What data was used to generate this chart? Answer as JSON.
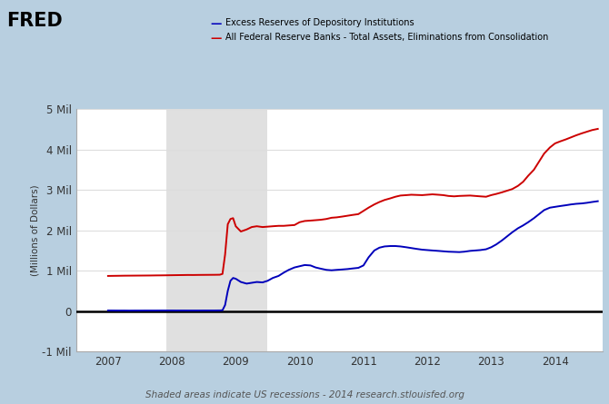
{
  "title": "",
  "ylabel": "(Millions of Dollars)",
  "xlabel": "",
  "footer": "Shaded areas indicate US recessions - 2014 research.stlouisfed.org",
  "legend_blue": "Excess Reserves of Depository Institutions",
  "legend_red": "All Federal Reserve Banks - Total Assets, Eliminations from Consolidation",
  "ylim": [
    -1000000,
    5000000
  ],
  "yticks": [
    -1000000,
    0,
    1000000,
    2000000,
    3000000,
    4000000,
    5000000
  ],
  "ytick_labels": [
    "-1 Mil",
    "0",
    "1 Mil",
    "2 Mil",
    "3 Mil",
    "4 Mil",
    "5 Mil"
  ],
  "recession_bands": [
    [
      2007.917,
      2009.5
    ]
  ],
  "bg_color": "#b8cfe0",
  "plot_bg_color": "#ffffff",
  "grid_color": "#dddddd",
  "blue_color": "#0000bb",
  "red_color": "#cc0000",
  "xticks": [
    2007,
    2008,
    2009,
    2010,
    2011,
    2012,
    2013,
    2014
  ],
  "xlim": [
    2006.5,
    2014.75
  ],
  "red_data": [
    [
      2007.0,
      870000
    ],
    [
      2007.08,
      872000
    ],
    [
      2007.17,
      874000
    ],
    [
      2007.25,
      876000
    ],
    [
      2007.33,
      877000
    ],
    [
      2007.42,
      878000
    ],
    [
      2007.5,
      879000
    ],
    [
      2007.58,
      880000
    ],
    [
      2007.67,
      881000
    ],
    [
      2007.75,
      883000
    ],
    [
      2007.83,
      884000
    ],
    [
      2007.92,
      886000
    ],
    [
      2008.0,
      888000
    ],
    [
      2008.08,
      890000
    ],
    [
      2008.17,
      892000
    ],
    [
      2008.25,
      894000
    ],
    [
      2008.33,
      893000
    ],
    [
      2008.42,
      895000
    ],
    [
      2008.5,
      896000
    ],
    [
      2008.58,
      897000
    ],
    [
      2008.67,
      898000
    ],
    [
      2008.75,
      900000
    ],
    [
      2008.792,
      920000
    ],
    [
      2008.833,
      1400000
    ],
    [
      2008.875,
      2150000
    ],
    [
      2008.917,
      2280000
    ],
    [
      2008.958,
      2300000
    ],
    [
      2009.0,
      2100000
    ],
    [
      2009.08,
      1970000
    ],
    [
      2009.17,
      2020000
    ],
    [
      2009.25,
      2080000
    ],
    [
      2009.33,
      2100000
    ],
    [
      2009.42,
      2080000
    ],
    [
      2009.5,
      2090000
    ],
    [
      2009.58,
      2100000
    ],
    [
      2009.67,
      2110000
    ],
    [
      2009.75,
      2110000
    ],
    [
      2009.83,
      2120000
    ],
    [
      2009.92,
      2130000
    ],
    [
      2010.0,
      2200000
    ],
    [
      2010.08,
      2230000
    ],
    [
      2010.17,
      2240000
    ],
    [
      2010.25,
      2250000
    ],
    [
      2010.33,
      2260000
    ],
    [
      2010.42,
      2280000
    ],
    [
      2010.5,
      2310000
    ],
    [
      2010.58,
      2320000
    ],
    [
      2010.67,
      2340000
    ],
    [
      2010.75,
      2360000
    ],
    [
      2010.83,
      2380000
    ],
    [
      2010.92,
      2400000
    ],
    [
      2011.0,
      2480000
    ],
    [
      2011.08,
      2560000
    ],
    [
      2011.17,
      2640000
    ],
    [
      2011.25,
      2700000
    ],
    [
      2011.33,
      2750000
    ],
    [
      2011.42,
      2790000
    ],
    [
      2011.5,
      2830000
    ],
    [
      2011.58,
      2860000
    ],
    [
      2011.67,
      2870000
    ],
    [
      2011.75,
      2880000
    ],
    [
      2011.83,
      2875000
    ],
    [
      2011.92,
      2870000
    ],
    [
      2012.0,
      2880000
    ],
    [
      2012.08,
      2890000
    ],
    [
      2012.17,
      2880000
    ],
    [
      2012.25,
      2870000
    ],
    [
      2012.33,
      2850000
    ],
    [
      2012.42,
      2840000
    ],
    [
      2012.5,
      2850000
    ],
    [
      2012.58,
      2855000
    ],
    [
      2012.67,
      2860000
    ],
    [
      2012.75,
      2850000
    ],
    [
      2012.83,
      2840000
    ],
    [
      2012.92,
      2830000
    ],
    [
      2013.0,
      2870000
    ],
    [
      2013.08,
      2900000
    ],
    [
      2013.17,
      2940000
    ],
    [
      2013.25,
      2980000
    ],
    [
      2013.33,
      3020000
    ],
    [
      2013.42,
      3100000
    ],
    [
      2013.5,
      3200000
    ],
    [
      2013.58,
      3350000
    ],
    [
      2013.67,
      3500000
    ],
    [
      2013.75,
      3700000
    ],
    [
      2013.83,
      3900000
    ],
    [
      2013.92,
      4050000
    ],
    [
      2014.0,
      4150000
    ],
    [
      2014.08,
      4200000
    ],
    [
      2014.17,
      4250000
    ],
    [
      2014.25,
      4300000
    ],
    [
      2014.33,
      4350000
    ],
    [
      2014.42,
      4400000
    ],
    [
      2014.5,
      4440000
    ],
    [
      2014.58,
      4480000
    ],
    [
      2014.67,
      4510000
    ]
  ],
  "blue_data": [
    [
      2007.0,
      15000
    ],
    [
      2007.08,
      14000
    ],
    [
      2007.17,
      13000
    ],
    [
      2007.25,
      13500
    ],
    [
      2007.33,
      12000
    ],
    [
      2007.42,
      13000
    ],
    [
      2007.5,
      13000
    ],
    [
      2007.58,
      14000
    ],
    [
      2007.67,
      14000
    ],
    [
      2007.75,
      14000
    ],
    [
      2007.83,
      15000
    ],
    [
      2007.92,
      15000
    ],
    [
      2008.0,
      15000
    ],
    [
      2008.08,
      14000
    ],
    [
      2008.17,
      14500
    ],
    [
      2008.25,
      14000
    ],
    [
      2008.33,
      14000
    ],
    [
      2008.42,
      14000
    ],
    [
      2008.5,
      15000
    ],
    [
      2008.58,
      15000
    ],
    [
      2008.67,
      15000
    ],
    [
      2008.75,
      16000
    ],
    [
      2008.792,
      20000
    ],
    [
      2008.833,
      150000
    ],
    [
      2008.875,
      500000
    ],
    [
      2008.917,
      750000
    ],
    [
      2008.958,
      820000
    ],
    [
      2009.0,
      800000
    ],
    [
      2009.08,
      720000
    ],
    [
      2009.17,
      680000
    ],
    [
      2009.25,
      700000
    ],
    [
      2009.33,
      720000
    ],
    [
      2009.42,
      710000
    ],
    [
      2009.5,
      750000
    ],
    [
      2009.58,
      820000
    ],
    [
      2009.67,
      870000
    ],
    [
      2009.75,
      950000
    ],
    [
      2009.83,
      1020000
    ],
    [
      2009.92,
      1080000
    ],
    [
      2010.0,
      1110000
    ],
    [
      2010.08,
      1140000
    ],
    [
      2010.17,
      1130000
    ],
    [
      2010.25,
      1080000
    ],
    [
      2010.33,
      1050000
    ],
    [
      2010.42,
      1020000
    ],
    [
      2010.5,
      1010000
    ],
    [
      2010.58,
      1020000
    ],
    [
      2010.67,
      1030000
    ],
    [
      2010.75,
      1040000
    ],
    [
      2010.83,
      1055000
    ],
    [
      2010.92,
      1070000
    ],
    [
      2011.0,
      1130000
    ],
    [
      2011.08,
      1330000
    ],
    [
      2011.17,
      1500000
    ],
    [
      2011.25,
      1570000
    ],
    [
      2011.33,
      1600000
    ],
    [
      2011.42,
      1610000
    ],
    [
      2011.5,
      1610000
    ],
    [
      2011.58,
      1600000
    ],
    [
      2011.67,
      1580000
    ],
    [
      2011.75,
      1560000
    ],
    [
      2011.83,
      1540000
    ],
    [
      2011.92,
      1520000
    ],
    [
      2012.0,
      1510000
    ],
    [
      2012.08,
      1500000
    ],
    [
      2012.17,
      1490000
    ],
    [
      2012.25,
      1480000
    ],
    [
      2012.33,
      1470000
    ],
    [
      2012.42,
      1465000
    ],
    [
      2012.5,
      1460000
    ],
    [
      2012.58,
      1470000
    ],
    [
      2012.67,
      1490000
    ],
    [
      2012.75,
      1500000
    ],
    [
      2012.83,
      1510000
    ],
    [
      2012.92,
      1530000
    ],
    [
      2013.0,
      1580000
    ],
    [
      2013.08,
      1650000
    ],
    [
      2013.17,
      1750000
    ],
    [
      2013.25,
      1850000
    ],
    [
      2013.33,
      1950000
    ],
    [
      2013.42,
      2050000
    ],
    [
      2013.5,
      2120000
    ],
    [
      2013.58,
      2200000
    ],
    [
      2013.67,
      2300000
    ],
    [
      2013.75,
      2400000
    ],
    [
      2013.83,
      2500000
    ],
    [
      2013.92,
      2560000
    ],
    [
      2014.0,
      2580000
    ],
    [
      2014.08,
      2600000
    ],
    [
      2014.17,
      2620000
    ],
    [
      2014.25,
      2640000
    ],
    [
      2014.33,
      2655000
    ],
    [
      2014.42,
      2665000
    ],
    [
      2014.5,
      2680000
    ],
    [
      2014.58,
      2700000
    ],
    [
      2014.67,
      2720000
    ]
  ]
}
